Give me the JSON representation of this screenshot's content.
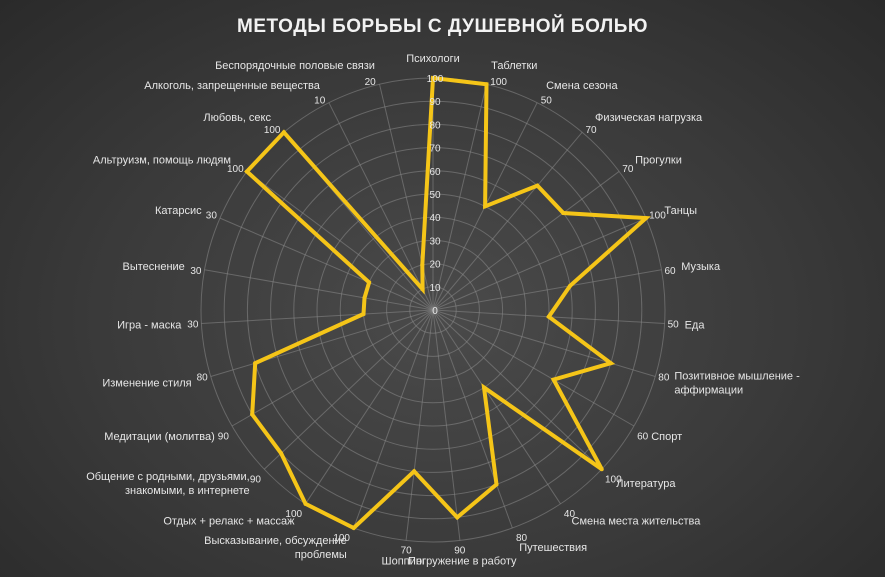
{
  "chart_data": {
    "type": "radar",
    "title": "МЕТОДЫ БОРЬБЫ С ДУШЕВНОЙ БОЛЬЮ",
    "rlim": [
      0,
      100
    ],
    "r_ticks": [
      0,
      10,
      20,
      30,
      40,
      50,
      60,
      70,
      80,
      90,
      100
    ],
    "grid": true,
    "legend": "none",
    "colors": {
      "series": "#f5c518",
      "grid": "#8a8a8a",
      "text": "#e6e6e6"
    },
    "categories": [
      "Психологи",
      "Таблетки",
      "Смена сезона",
      "Физическая нагрузка",
      "Прогулки",
      "Танцы",
      "Музыка",
      "Еда",
      "Позитивное мышление - аффирмации",
      "Спорт",
      "Литература",
      "Смена места жительства",
      "Путешествия",
      "Погружение в работу",
      "Шоппинг",
      "Высказывание, обсуждение проблемы",
      "Отдых + релакс + массаж",
      "Общение с родными, друзьями, знакомыми, в интернете",
      "Медитации (молитва)",
      "Изменение стиля",
      "Игра - маска",
      "Вытеснение",
      "Катарсис",
      "Альтруизм, помощь людям",
      "Любовь, секс",
      "Алкоголь, запрещенные вещества",
      "Беспорядочные половые связи"
    ],
    "series": [
      {
        "values": [
          100,
          100,
          50,
          70,
          70,
          100,
          60,
          50,
          80,
          60,
          100,
          40,
          80,
          90,
          70,
          100,
          100,
          90,
          90,
          80,
          30,
          30,
          30,
          100,
          100,
          10,
          20
        ]
      }
    ]
  }
}
